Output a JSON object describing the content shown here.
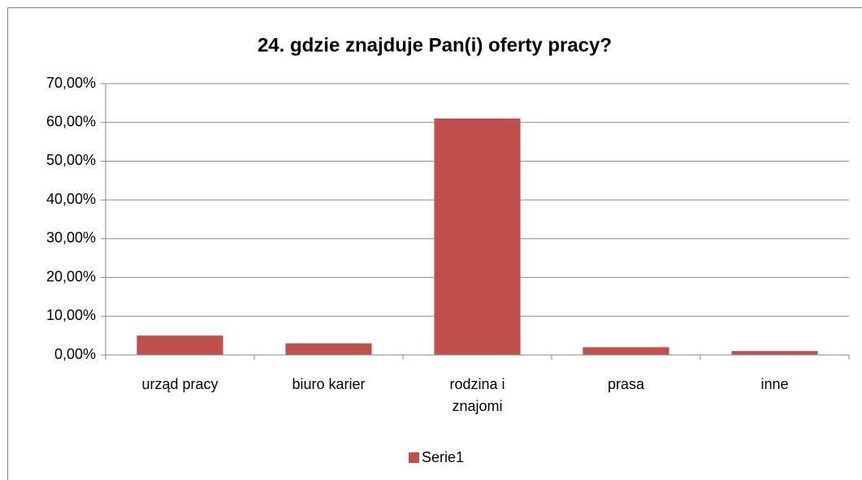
{
  "chart_data": {
    "type": "bar",
    "title": "24. gdzie znajduje Pan(i) oferty pracy?",
    "categories": [
      "urząd pracy",
      "biuro karier",
      "rodzina i znajomi",
      "prasa",
      "inne"
    ],
    "series": [
      {
        "name": "Serie1",
        "color": "#c0504d",
        "values": [
          5,
          3,
          61,
          2,
          1
        ]
      }
    ],
    "ylim": [
      0,
      70
    ],
    "yticks": [
      {
        "value": 0,
        "label": "0,00%"
      },
      {
        "value": 10,
        "label": "10,00%"
      },
      {
        "value": 20,
        "label": "20,00%"
      },
      {
        "value": 30,
        "label": "30,00%"
      },
      {
        "value": 40,
        "label": "40,00%"
      },
      {
        "value": 50,
        "label": "50,00%"
      },
      {
        "value": 60,
        "label": "60,00%"
      },
      {
        "value": 70,
        "label": "70,00%"
      }
    ],
    "grid": true,
    "legend": "bottom"
  }
}
